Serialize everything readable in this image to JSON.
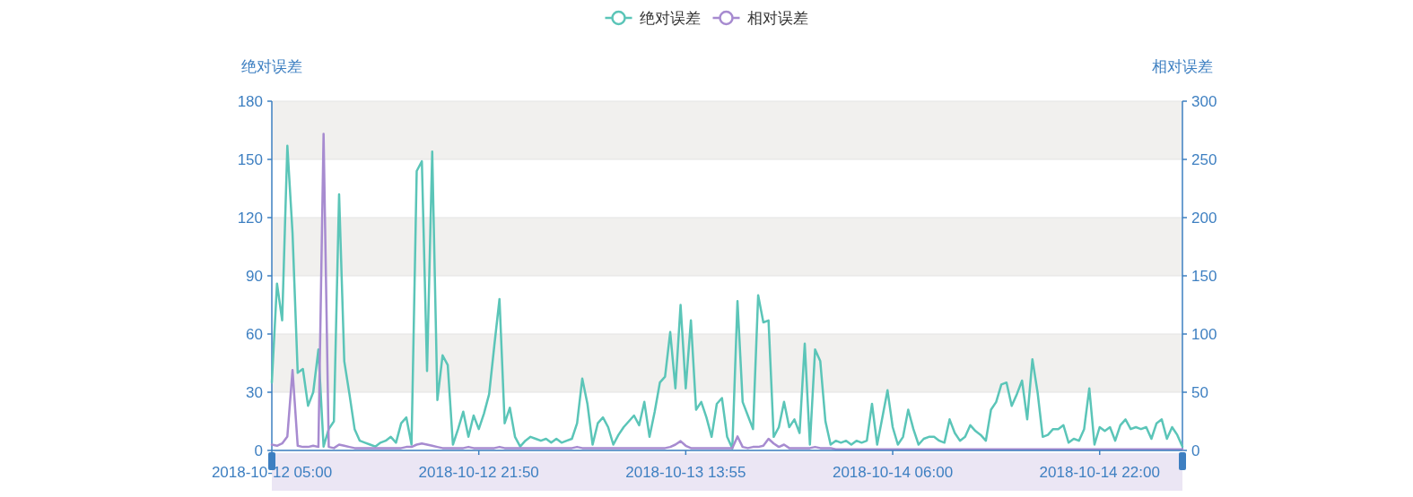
{
  "chart_data": {
    "type": "line",
    "categories": [
      "2018-10-12 05:00",
      null,
      null,
      null,
      null,
      null,
      null,
      null,
      null,
      null,
      null,
      null,
      null,
      null,
      null,
      null,
      null,
      null,
      null,
      null,
      null,
      null,
      null,
      null,
      null,
      null,
      null,
      null,
      null,
      null,
      null,
      null,
      null,
      null,
      null,
      null,
      null,
      null,
      null,
      null,
      "2018-10-12 21:50",
      null,
      null,
      null,
      null,
      null,
      null,
      null,
      null,
      null,
      null,
      null,
      null,
      null,
      null,
      null,
      null,
      null,
      null,
      null,
      null,
      null,
      null,
      null,
      null,
      null,
      null,
      null,
      null,
      null,
      null,
      null,
      null,
      null,
      null,
      null,
      null,
      null,
      null,
      null,
      "2018-10-13 13:55",
      null,
      null,
      null,
      null,
      null,
      null,
      null,
      null,
      null,
      null,
      null,
      null,
      null,
      null,
      null,
      null,
      null,
      null,
      null,
      null,
      null,
      null,
      null,
      null,
      null,
      null,
      null,
      null,
      null,
      null,
      null,
      null,
      null,
      null,
      null,
      null,
      null,
      null,
      null,
      "2018-10-14 06:00",
      null,
      null,
      null,
      null,
      null,
      null,
      null,
      null,
      null,
      null,
      null,
      null,
      null,
      null,
      null,
      null,
      null,
      null,
      null,
      null,
      null,
      null,
      null,
      null,
      null,
      null,
      null,
      null,
      null,
      null,
      null,
      null,
      null,
      null,
      null,
      null,
      null,
      null,
      null,
      "2018-10-14 22:00",
      null,
      null,
      null,
      null,
      null,
      null,
      null,
      null,
      null,
      null,
      null,
      null,
      null,
      null,
      null,
      null
    ],
    "series": [
      {
        "name": "绝对误差",
        "color": "#5bc5b8",
        "values": [
          35,
          86,
          67,
          157,
          112,
          40,
          42,
          23,
          30,
          52,
          2,
          11,
          15,
          132,
          46,
          29,
          11,
          5,
          4,
          3,
          2,
          4,
          5,
          7,
          4,
          14,
          17,
          3,
          144,
          149,
          41,
          154,
          26,
          49,
          44,
          3,
          11,
          20,
          7,
          18,
          11,
          19,
          29,
          54,
          78,
          14,
          22,
          7,
          2,
          5,
          7,
          6,
          5,
          6,
          4,
          6,
          4,
          5,
          6,
          14,
          37,
          24,
          3,
          14,
          17,
          12,
          3,
          8,
          12,
          15,
          18,
          13,
          25,
          7,
          20,
          35,
          38,
          61,
          32,
          75,
          32,
          67,
          21,
          25,
          17,
          7,
          24,
          27,
          7,
          1,
          77,
          25,
          18,
          11,
          80,
          66,
          67,
          7,
          12,
          25,
          12,
          16,
          9,
          55,
          3,
          52,
          46,
          15,
          3,
          5,
          4,
          5,
          3,
          5,
          4,
          5,
          24,
          3,
          17,
          31,
          12,
          3,
          7,
          21,
          11,
          3,
          6,
          7,
          7,
          5,
          4,
          16,
          9,
          5,
          7,
          13,
          10,
          8,
          5,
          21,
          25,
          34,
          35,
          23,
          29,
          36,
          16,
          47,
          30,
          7,
          8,
          11,
          11,
          13,
          4,
          6,
          5,
          11,
          32,
          3,
          12,
          10,
          12,
          5,
          13,
          16,
          11,
          12,
          11,
          12,
          6,
          14,
          16,
          6,
          12,
          8,
          2
        ]
      },
      {
        "name": "相对误差",
        "color": "#a78bd0",
        "axis": "y2",
        "values": [
          5,
          4,
          6,
          12,
          69,
          4,
          3,
          3,
          4,
          3,
          272,
          3,
          2,
          5,
          4,
          3,
          2,
          2,
          2,
          2,
          2,
          2,
          2,
          2,
          2,
          2,
          3,
          3,
          5,
          6,
          5,
          4,
          3,
          2,
          2,
          2,
          2,
          2,
          3,
          2,
          2,
          2,
          2,
          2,
          3,
          2,
          2,
          2,
          2,
          2,
          2,
          2,
          2,
          2,
          2,
          2,
          2,
          2,
          2,
          3,
          2,
          2,
          2,
          2,
          2,
          2,
          2,
          2,
          2,
          2,
          2,
          2,
          2,
          2,
          2,
          2,
          2,
          3,
          5,
          8,
          4,
          2,
          2,
          2,
          2,
          2,
          2,
          2,
          2,
          2,
          12,
          3,
          2,
          3,
          3,
          4,
          10,
          6,
          3,
          5,
          2,
          2,
          2,
          2,
          2,
          3,
          2,
          2,
          2,
          1,
          1,
          1,
          1,
          1,
          1,
          1,
          1,
          1,
          1,
          1,
          1,
          1,
          1,
          1,
          1,
          1,
          1,
          1,
          1,
          1,
          1,
          1,
          1,
          1,
          1,
          1,
          1,
          1,
          1,
          1,
          1,
          1,
          1,
          1,
          1,
          1,
          1,
          1,
          1,
          1,
          1,
          1,
          1,
          1,
          1,
          1,
          1,
          1,
          1,
          1,
          1,
          1,
          1,
          1,
          1,
          1,
          1,
          1,
          1,
          1,
          1,
          1,
          1,
          1,
          1,
          1,
          1
        ]
      }
    ],
    "ylabel": "绝对误差",
    "y2label": "相对误差",
    "ylim": [
      0,
      180
    ],
    "yticks": [
      0,
      30,
      60,
      90,
      120,
      150,
      180
    ],
    "y2lim": [
      0,
      300
    ],
    "y2ticks": [
      0,
      50,
      100,
      150,
      200,
      250,
      300
    ],
    "grid": "y",
    "legend": "top"
  }
}
